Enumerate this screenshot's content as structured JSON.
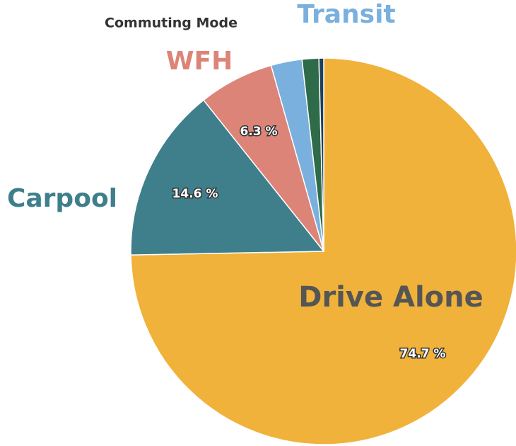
{
  "chart_data": {
    "type": "pie",
    "title": "Commuting Mode",
    "categories": [
      "Drive Alone",
      "Carpool",
      "WFH",
      "Transit",
      null,
      null
    ],
    "values": [
      74.7,
      14.6,
      6.3,
      2.6,
      1.4,
      0.4
    ],
    "value_labels": [
      "74.7 %",
      "14.6 %",
      "6.3 %",
      null,
      null,
      null
    ],
    "colors": [
      "#f0b23a",
      "#3f7f8c",
      "#dd8479",
      "#7ab0de",
      "#2e6b48",
      "#1f3f5a"
    ],
    "label_colors": [
      "#555555",
      "#3f7f8c",
      "#dd8479",
      "#7ab0de",
      "#2e6b48",
      "#1f3f5a"
    ]
  }
}
